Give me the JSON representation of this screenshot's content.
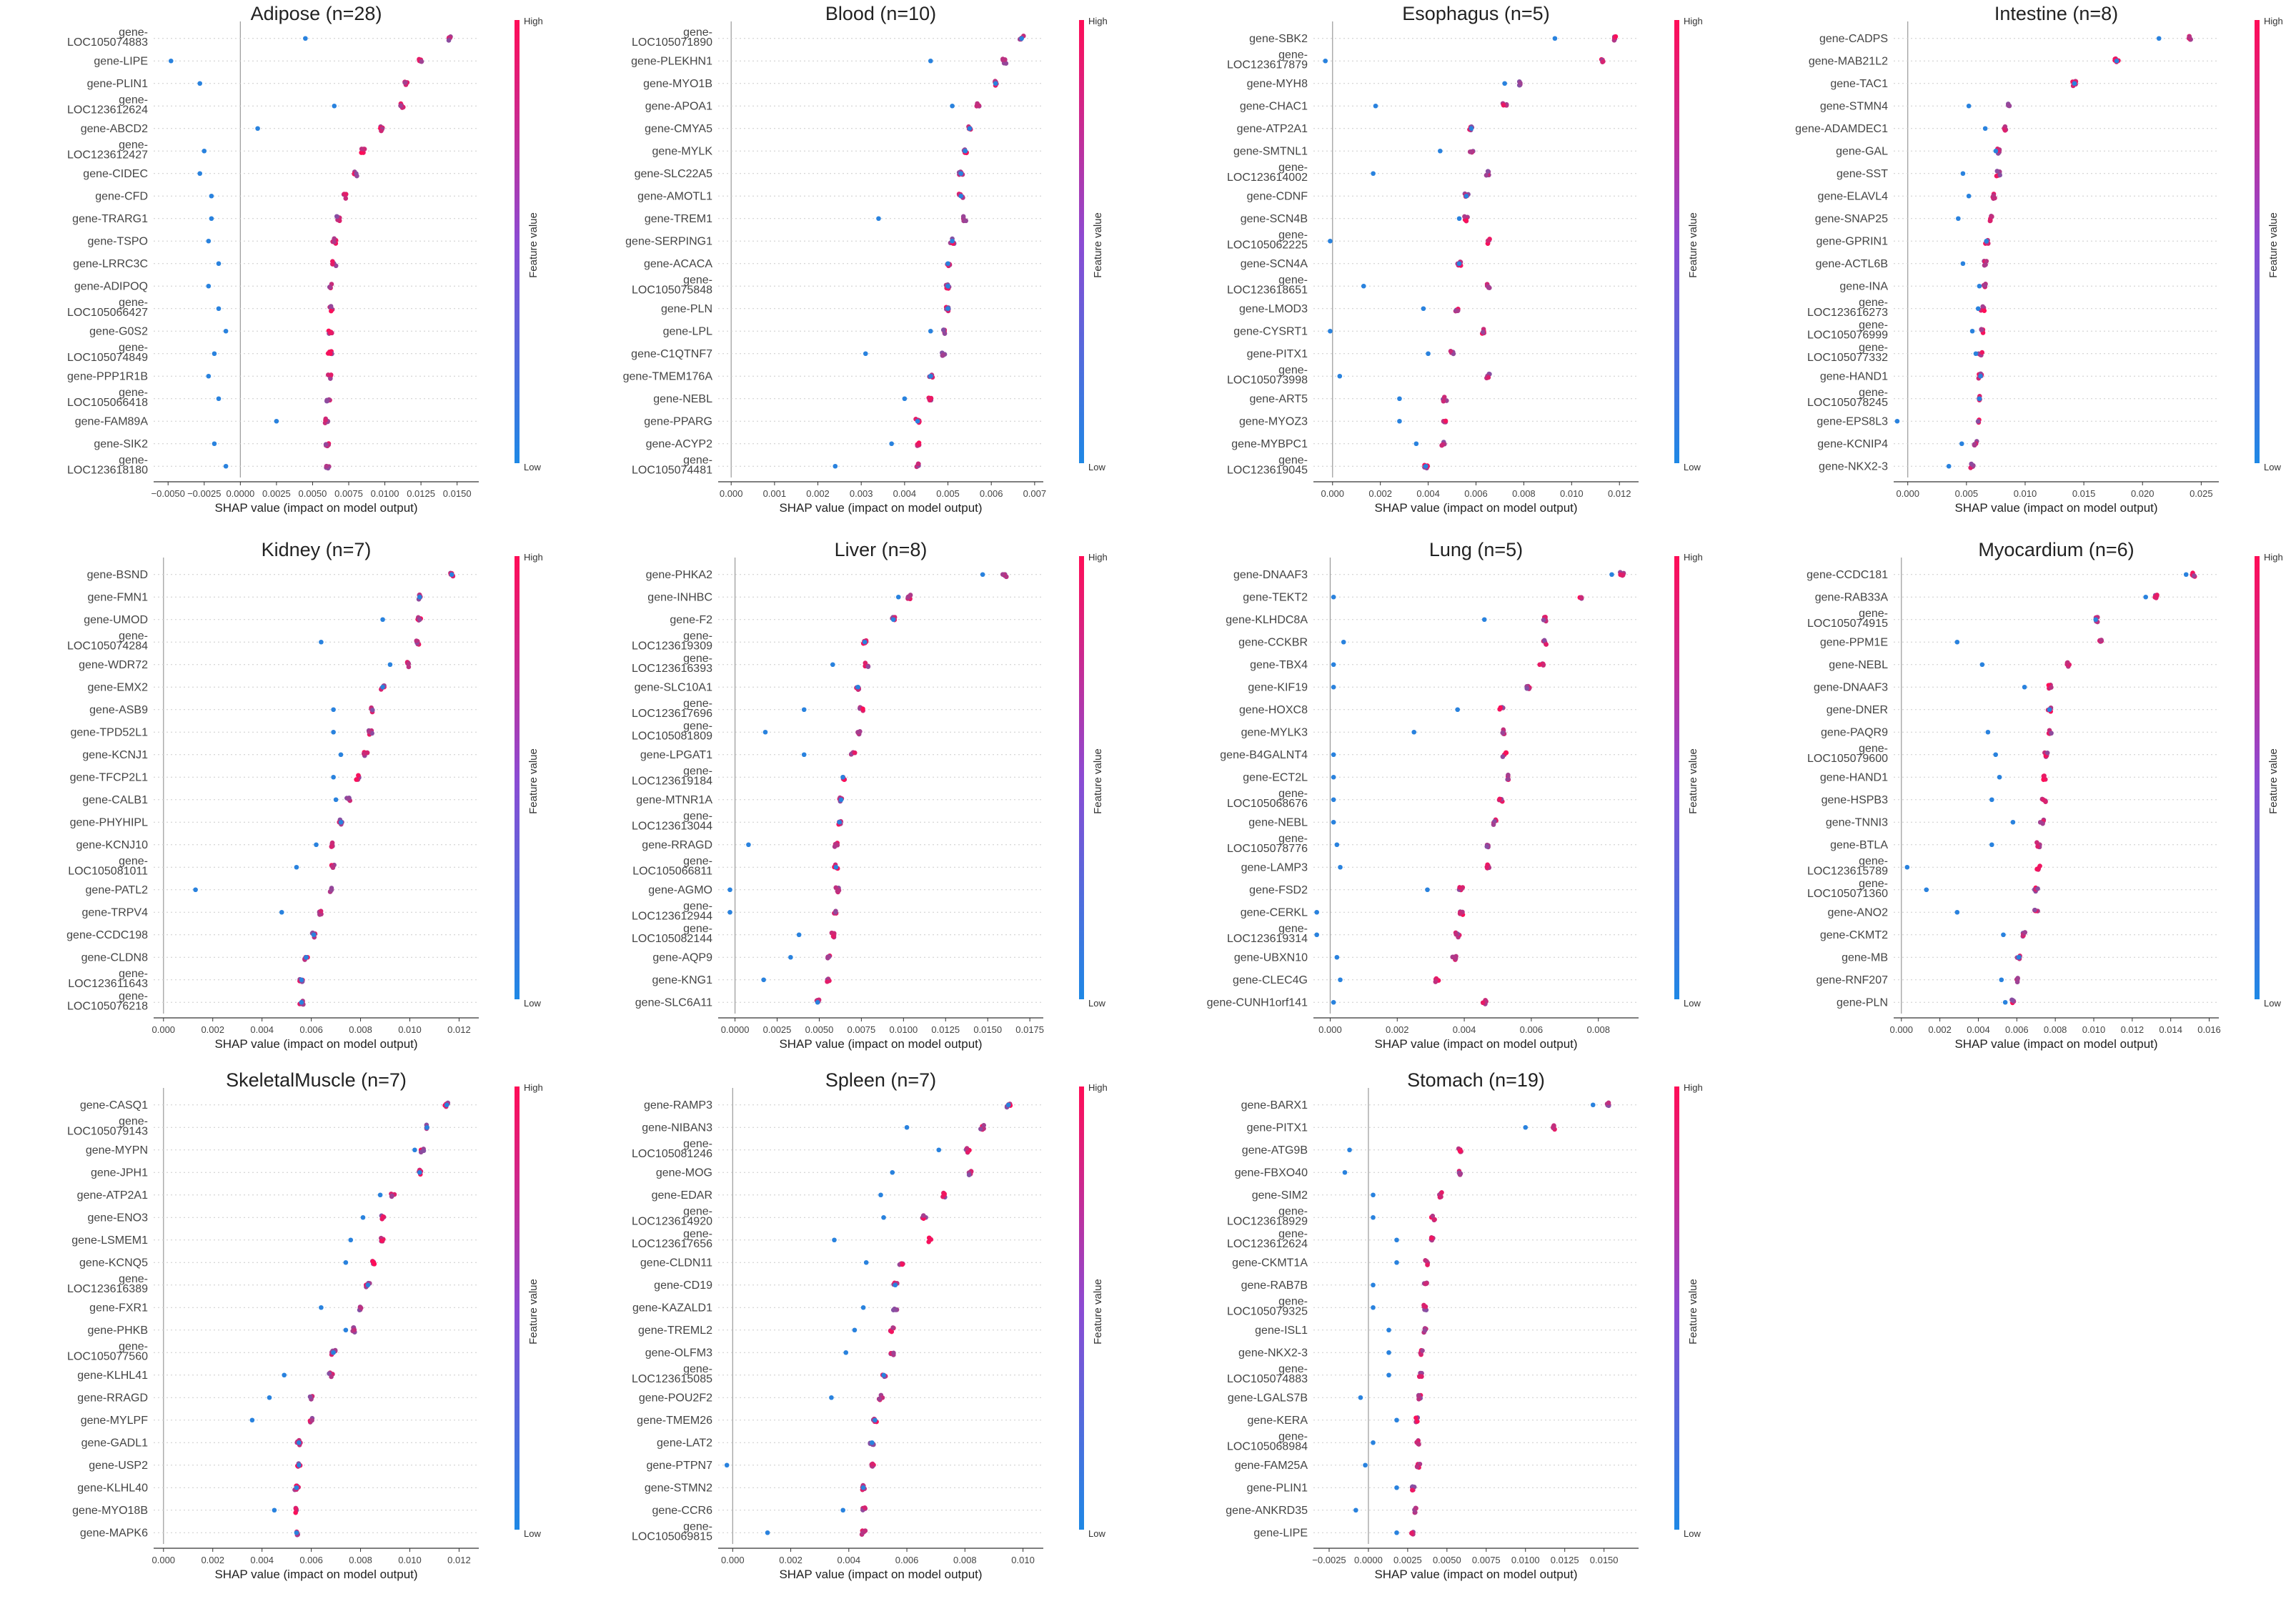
{
  "chart_data": [
    {
      "type": "scatter",
      "title": "Adipose (n=28)",
      "xlabel": "SHAP value (impact on model output)",
      "xlim": [
        -0.006,
        0.0165
      ],
      "xticks": [
        -0.005,
        -0.0025,
        0,
        0.0025,
        0.005,
        0.0075,
        0.01,
        0.0125,
        0.015
      ],
      "xtick_labels": [
        "−0.0050",
        "−0.0025",
        "0.0000",
        "0.0025",
        "0.0050",
        "0.0075",
        "0.0100",
        "0.0125",
        "0.0150"
      ],
      "features": [
        "gene-LOC105074883",
        "gene-LIPE",
        "gene-PLIN1",
        "gene-LOC123612624",
        "gene-ABCD2",
        "gene-LOC123612427",
        "gene-CIDEC",
        "gene-CFD",
        "gene-TRARG1",
        "gene-TSPO",
        "gene-LRRC3C",
        "gene-ADIPOQ",
        "gene-LOC105066427",
        "gene-G0S2",
        "gene-LOC105074849",
        "gene-PPP1R1B",
        "gene-LOC105066418",
        "gene-FAM89A",
        "gene-SIK2",
        "gene-LOC123618180"
      ],
      "centers": [
        0.0145,
        0.0125,
        0.0115,
        0.0112,
        0.0098,
        0.0085,
        0.008,
        0.0072,
        0.0068,
        0.0065,
        0.0065,
        0.0063,
        0.0063,
        0.0062,
        0.0062,
        0.0062,
        0.0061,
        0.006,
        0.006,
        0.006
      ],
      "lows": [
        0.0045,
        -0.0048,
        -0.0028,
        0.0065,
        0.0012,
        -0.0025,
        -0.0028,
        -0.002,
        -0.002,
        -0.0022,
        -0.0015,
        -0.0022,
        -0.0015,
        -0.001,
        -0.0018,
        -0.0022,
        -0.0015,
        0.0025,
        -0.0018,
        -0.001
      ]
    },
    {
      "type": "scatter",
      "title": "Blood (n=10)",
      "xlabel": "SHAP value (impact on model output)",
      "xlim": [
        -0.0003,
        0.0072
      ],
      "xticks": [
        0,
        0.001,
        0.002,
        0.003,
        0.004,
        0.005,
        0.006,
        0.007
      ],
      "xtick_labels": [
        "0.000",
        "0.001",
        "0.002",
        "0.003",
        "0.004",
        "0.005",
        "0.006",
        "0.007"
      ],
      "features": [
        "gene-LOC105071890",
        "gene-PLEKHN1",
        "gene-MYO1B",
        "gene-APOA1",
        "gene-CMYA5",
        "gene-MYLK",
        "gene-SLC22A5",
        "gene-AMOTL1",
        "gene-TREM1",
        "gene-SERPING1",
        "gene-ACACA",
        "gene-LOC105075848",
        "gene-PLN",
        "gene-LPL",
        "gene-C1QTNF7",
        "gene-TMEM176A",
        "gene-NEBL",
        "gene-PPARG",
        "gene-ACYP2",
        "gene-LOC105074481"
      ],
      "centers": [
        0.0067,
        0.0063,
        0.0061,
        0.0057,
        0.0055,
        0.0054,
        0.0053,
        0.0053,
        0.0054,
        0.0051,
        0.005,
        0.005,
        0.005,
        0.0049,
        0.0049,
        0.0046,
        0.0046,
        0.0043,
        0.0043,
        0.0043
      ],
      "lows": [
        0.0067,
        0.0046,
        0.0061,
        0.0051,
        0.0055,
        0.0054,
        0.0053,
        0.0053,
        0.0034,
        0.0051,
        0.005,
        0.005,
        0.005,
        0.0046,
        0.0031,
        0.0046,
        0.004,
        0.0043,
        0.0037,
        0.0024
      ]
    },
    {
      "type": "scatter",
      "title": "Esophagus (n=5)",
      "xlabel": "SHAP value (impact on model output)",
      "xlim": [
        -0.0008,
        0.0128
      ],
      "xticks": [
        0,
        0.002,
        0.004,
        0.006,
        0.008,
        0.01,
        0.012
      ],
      "xtick_labels": [
        "0.000",
        "0.002",
        "0.004",
        "0.006",
        "0.008",
        "0.010",
        "0.012"
      ],
      "features": [
        "gene-SBK2",
        "gene-LOC123617879",
        "gene-MYH8",
        "gene-CHAC1",
        "gene-ATP2A1",
        "gene-SMTNL1",
        "gene-LOC123614002",
        "gene-CDNF",
        "gene-SCN4B",
        "gene-LOC105062225",
        "gene-SCN4A",
        "gene-LOC123618651",
        "gene-LMOD3",
        "gene-CYSRT1",
        "gene-PITX1",
        "gene-LOC105073998",
        "gene-ART5",
        "gene-MYOZ3",
        "gene-MYBPC1",
        "gene-LOC123619045"
      ],
      "centers": [
        0.0118,
        0.0113,
        0.0078,
        0.0072,
        0.0058,
        0.0058,
        0.0065,
        0.0056,
        0.0056,
        0.0065,
        0.0053,
        0.0065,
        0.0052,
        0.0063,
        0.005,
        0.0065,
        0.0047,
        0.0047,
        0.0046,
        0.0039
      ],
      "lows": [
        0.0093,
        -0.0003,
        0.0072,
        0.0018,
        0.0058,
        0.0045,
        0.0017,
        0.0056,
        0.0053,
        -0.0001,
        0.0053,
        0.0013,
        0.0038,
        -0.0001,
        0.004,
        0.0003,
        0.0028,
        0.0028,
        0.0035,
        0.0039
      ]
    },
    {
      "type": "scatter",
      "title": "Intestine (n=8)",
      "xlabel": "SHAP value (impact on model output)",
      "xlim": [
        -0.0012,
        0.0265
      ],
      "xticks": [
        0,
        0.005,
        0.01,
        0.015,
        0.02,
        0.025
      ],
      "xtick_labels": [
        "0.000",
        "0.005",
        "0.010",
        "0.015",
        "0.020",
        "0.025"
      ],
      "features": [
        "gene-CADPS",
        "gene-MAB21L2",
        "gene-TAC1",
        "gene-STMN4",
        "gene-ADAMDEC1",
        "gene-GAL",
        "gene-SST",
        "gene-ELAVL4",
        "gene-SNAP25",
        "gene-GPRIN1",
        "gene-ACTL6B",
        "gene-INA",
        "gene-LOC123616273",
        "gene-LOC105076999",
        "gene-LOC105077332",
        "gene-HAND1",
        "gene-LOC105078245",
        "gene-EPS8L3",
        "gene-KCNIP4",
        "gene-NKX2-3"
      ],
      "centers": [
        0.024,
        0.0178,
        0.0142,
        0.0085,
        0.0082,
        0.0078,
        0.0077,
        0.0074,
        0.007,
        0.0067,
        0.0066,
        0.0065,
        0.0064,
        0.0063,
        0.0062,
        0.0062,
        0.0061,
        0.006,
        0.0058,
        0.0055
      ],
      "lows": [
        0.0214,
        0.0178,
        0.0142,
        0.0052,
        0.0066,
        0.0075,
        0.0047,
        0.0052,
        0.0043,
        0.0067,
        0.0047,
        0.0061,
        0.006,
        0.0055,
        0.0058,
        0.0062,
        0.0061,
        -0.0009,
        0.0046,
        0.0035
      ]
    },
    {
      "type": "scatter",
      "title": "Kidney (n=7)",
      "xlabel": "SHAP value (impact on model output)",
      "xlim": [
        -0.0004,
        0.0128
      ],
      "xticks": [
        0,
        0.002,
        0.004,
        0.006,
        0.008,
        0.01,
        0.012
      ],
      "xtick_labels": [
        "0.000",
        "0.002",
        "0.004",
        "0.006",
        "0.008",
        "0.010",
        "0.012"
      ],
      "features": [
        "gene-BSND",
        "gene-FMN1",
        "gene-UMOD",
        "gene-LOC105074284",
        "gene-WDR72",
        "gene-EMX2",
        "gene-ASB9",
        "gene-TPD52L1",
        "gene-KCNJ1",
        "gene-TFCP2L1",
        "gene-CALB1",
        "gene-PHYHIPL",
        "gene-KCNJ10",
        "gene-LOC105081011",
        "gene-PATL2",
        "gene-TRPV4",
        "gene-CCDC198",
        "gene-CLDN8",
        "gene-LOC123611643",
        "gene-LOC105076218"
      ],
      "centers": [
        0.0117,
        0.0104,
        0.0104,
        0.0103,
        0.0099,
        0.0089,
        0.0085,
        0.0084,
        0.0082,
        0.0079,
        0.0075,
        0.0072,
        0.0069,
        0.0069,
        0.0068,
        0.0064,
        0.0061,
        0.0058,
        0.0056,
        0.0056
      ],
      "lows": [
        0.0117,
        0.0104,
        0.0089,
        0.0064,
        0.0092,
        0.0089,
        0.0069,
        0.0069,
        0.0072,
        0.0069,
        0.007,
        0.0072,
        0.0062,
        0.0054,
        0.0013,
        0.0048,
        0.0061,
        0.0058,
        0.0056,
        0.0056
      ]
    },
    {
      "type": "scatter",
      "title": "Liver (n=8)",
      "xlabel": "SHAP value (impact on model output)",
      "xlim": [
        -0.001,
        0.0183
      ],
      "xticks": [
        0,
        0.0025,
        0.005,
        0.0075,
        0.01,
        0.0125,
        0.015,
        0.0175
      ],
      "xtick_labels": [
        "0.0000",
        "0.0025",
        "0.0050",
        "0.0075",
        "0.0100",
        "0.0125",
        "0.0150",
        "0.0175"
      ],
      "features": [
        "gene-PHKA2",
        "gene-INHBC",
        "gene-F2",
        "gene-LOC123619309",
        "gene-LOC123616393",
        "gene-SLC10A1",
        "gene-LOC123617696",
        "gene-LOC105081809",
        "gene-LPGAT1",
        "gene-LOC123619184",
        "gene-MTNR1A",
        "gene-LOC123613044",
        "gene-RRAGD",
        "gene-LOC105066811",
        "gene-AGMO",
        "gene-LOC123612944",
        "gene-LOC105082144",
        "gene-AQP9",
        "gene-KNG1",
        "gene-SLC6A11"
      ],
      "centers": [
        0.016,
        0.0103,
        0.0094,
        0.0077,
        0.0078,
        0.0073,
        0.0075,
        0.0074,
        0.007,
        0.0064,
        0.0063,
        0.0062,
        0.006,
        0.006,
        0.0061,
        0.006,
        0.0058,
        0.0056,
        0.0055,
        0.0049
      ],
      "lows": [
        0.0147,
        0.0097,
        0.0094,
        0.0077,
        0.0058,
        0.0073,
        0.0041,
        0.0018,
        0.0041,
        0.0064,
        0.0063,
        0.0062,
        0.0008,
        0.006,
        -0.0003,
        -0.0003,
        0.0038,
        0.0033,
        0.0017,
        0.0049
      ]
    },
    {
      "type": "scatter",
      "title": "Lung (n=5)",
      "xlabel": "SHAP value (impact on model output)",
      "xlim": [
        -0.0005,
        0.0092
      ],
      "xticks": [
        0,
        0.002,
        0.004,
        0.006,
        0.008
      ],
      "xtick_labels": [
        "0.000",
        "0.002",
        "0.004",
        "0.006",
        "0.008"
      ],
      "features": [
        "gene-DNAAF3",
        "gene-TEKT2",
        "gene-KLHDC8A",
        "gene-CCKBR",
        "gene-TBX4",
        "gene-KIF19",
        "gene-HOXC8",
        "gene-MYLK3",
        "gene-B4GALNT4",
        "gene-ECT2L",
        "gene-LOC105068676",
        "gene-NEBL",
        "gene-LOC105078776",
        "gene-LAMP3",
        "gene-FSD2",
        "gene-CERKL",
        "gene-LOC123619314",
        "gene-UBXN10",
        "gene-CLEC4G",
        "gene-CUNH1orf141"
      ],
      "centers": [
        0.0087,
        0.0075,
        0.0064,
        0.0064,
        0.0063,
        0.0059,
        0.0051,
        0.0052,
        0.0052,
        0.0053,
        0.0051,
        0.0049,
        0.0047,
        0.0047,
        0.0039,
        0.0039,
        0.0038,
        0.0037,
        0.0032,
        0.0046
      ],
      "lows": [
        0.0084,
        0.0001,
        0.0046,
        0.0004,
        0.0001,
        0.0001,
        0.0038,
        0.0025,
        0.0001,
        0.0001,
        0.0001,
        0.0001,
        0.0002,
        0.0003,
        0.0029,
        -0.0004,
        -0.0004,
        0.0002,
        0.0003,
        0.0001
      ]
    },
    {
      "type": "scatter",
      "title": "Myocardium (n=6)",
      "xlabel": "SHAP value (impact on model output)",
      "xlim": [
        -0.0004,
        0.0165
      ],
      "xticks": [
        0,
        0.002,
        0.004,
        0.006,
        0.008,
        0.01,
        0.012,
        0.014,
        0.016
      ],
      "xtick_labels": [
        "0.000",
        "0.002",
        "0.004",
        "0.006",
        "0.008",
        "0.010",
        "0.012",
        "0.014",
        "0.016"
      ],
      "features": [
        "gene-CCDC181",
        "gene-RAB33A",
        "gene-LOC105074915",
        "gene-PPM1E",
        "gene-NEBL",
        "gene-DNAAF3",
        "gene-DNER",
        "gene-PAQR9",
        "gene-LOC105079600",
        "gene-HAND1",
        "gene-HSPB3",
        "gene-TNNI3",
        "gene-BTLA",
        "gene-LOC123615789",
        "gene-LOC105071360",
        "gene-ANO2",
        "gene-CKMT2",
        "gene-MB",
        "gene-RNF207",
        "gene-PLN"
      ],
      "centers": [
        0.0152,
        0.0132,
        0.0101,
        0.0103,
        0.0087,
        0.0077,
        0.0077,
        0.0077,
        0.0075,
        0.0074,
        0.0074,
        0.0073,
        0.0071,
        0.0071,
        0.007,
        0.007,
        0.0064,
        0.0061,
        0.006,
        0.0058
      ],
      "lows": [
        0.0148,
        0.0127,
        0.0101,
        0.0029,
        0.0042,
        0.0064,
        0.0077,
        0.0045,
        0.0049,
        0.0051,
        0.0047,
        0.0058,
        0.0047,
        0.0003,
        0.0013,
        0.0029,
        0.0053,
        0.0061,
        0.0052,
        0.0054
      ]
    },
    {
      "type": "scatter",
      "title": "SkeletalMuscle (n=7)",
      "xlabel": "SHAP value (impact on model output)",
      "xlim": [
        -0.0004,
        0.0128
      ],
      "xticks": [
        0,
        0.002,
        0.004,
        0.006,
        0.008,
        0.01,
        0.012
      ],
      "xtick_labels": [
        "0.000",
        "0.002",
        "0.004",
        "0.006",
        "0.008",
        "0.010",
        "0.012"
      ],
      "features": [
        "gene-CASQ1",
        "gene-LOC105079143",
        "gene-MYPN",
        "gene-JPH1",
        "gene-ATP2A1",
        "gene-ENO3",
        "gene-LSMEM1",
        "gene-KCNQ5",
        "gene-LOC123616389",
        "gene-FXR1",
        "gene-PHKB",
        "gene-LOC105077560",
        "gene-KLHL41",
        "gene-RRAGD",
        "gene-MYLPF",
        "gene-GADL1",
        "gene-USP2",
        "gene-KLHL40",
        "gene-MYO18B",
        "gene-MAPK6"
      ],
      "centers": [
        0.0115,
        0.0107,
        0.0105,
        0.0104,
        0.0093,
        0.0089,
        0.0089,
        0.0085,
        0.0083,
        0.008,
        0.0077,
        0.0069,
        0.0068,
        0.006,
        0.006,
        0.0055,
        0.0055,
        0.0054,
        0.0054,
        0.0054
      ],
      "lows": [
        0.0115,
        0.0107,
        0.0102,
        0.0104,
        0.0088,
        0.0081,
        0.0076,
        0.0074,
        0.0083,
        0.0064,
        0.0074,
        0.0069,
        0.0049,
        0.0043,
        0.0036,
        0.0055,
        0.0055,
        0.0054,
        0.0045,
        0.0054
      ]
    },
    {
      "type": "scatter",
      "title": "Spleen (n=7)",
      "xlabel": "SHAP value (impact on model output)",
      "xlim": [
        -0.0005,
        0.0107
      ],
      "xticks": [
        0,
        0.002,
        0.004,
        0.006,
        0.008,
        0.01
      ],
      "xtick_labels": [
        "0.000",
        "0.002",
        "0.004",
        "0.006",
        "0.008",
        "0.010"
      ],
      "features": [
        "gene-RAMP3",
        "gene-NIBAN3",
        "gene-LOC105081246",
        "gene-MOG",
        "gene-EDAR",
        "gene-LOC123614920",
        "gene-LOC123617656",
        "gene-CLDN11",
        "gene-CD19",
        "gene-KAZALD1",
        "gene-TREML2",
        "gene-OLFM3",
        "gene-LOC123615085",
        "gene-POU2F2",
        "gene-TMEM26",
        "gene-LAT2",
        "gene-PTPN7",
        "gene-STMN2",
        "gene-CCR6",
        "gene-LOC105069815"
      ],
      "centers": [
        0.0095,
        0.0086,
        0.0081,
        0.0082,
        0.0073,
        0.0066,
        0.0068,
        0.0058,
        0.0056,
        0.0056,
        0.0055,
        0.0055,
        0.0052,
        0.0051,
        0.0049,
        0.0048,
        0.0048,
        0.0045,
        0.0045,
        0.0045
      ],
      "lows": [
        0.0095,
        0.006,
        0.0071,
        0.0055,
        0.0051,
        0.0052,
        0.0035,
        0.0046,
        0.0056,
        0.0045,
        0.0042,
        0.0039,
        0.0052,
        0.0034,
        0.0049,
        0.0048,
        -0.0002,
        0.0045,
        0.0038,
        0.0012
      ]
    },
    {
      "type": "scatter",
      "title": "Stomach (n=19)",
      "xlabel": "SHAP value (impact on model output)",
      "xlim": [
        -0.0035,
        0.0172
      ],
      "xticks": [
        -0.0025,
        0,
        0.0025,
        0.005,
        0.0075,
        0.01,
        0.0125,
        0.015
      ],
      "xtick_labels": [
        "−0.0025",
        "0.0000",
        "0.0025",
        "0.0050",
        "0.0075",
        "0.0100",
        "0.0125",
        "0.0150"
      ],
      "features": [
        "gene-BARX1",
        "gene-PITX1",
        "gene-ATG9B",
        "gene-FBXO40",
        "gene-SIM2",
        "gene-LOC123618929",
        "gene-LOC123612624",
        "gene-CKMT1A",
        "gene-RAB7B",
        "gene-LOC105079325",
        "gene-ISL1",
        "gene-NKX2-3",
        "gene-LOC105074883",
        "gene-LGALS7B",
        "gene-KERA",
        "gene-LOC105068984",
        "gene-FAM25A",
        "gene-PLIN1",
        "gene-ANKRD35",
        "gene-LIPE"
      ],
      "centers": [
        0.0152,
        0.0118,
        0.0058,
        0.0058,
        0.0046,
        0.0041,
        0.0041,
        0.0037,
        0.0036,
        0.0036,
        0.0036,
        0.0034,
        0.0033,
        0.0033,
        0.0031,
        0.0031,
        0.0032,
        0.0029,
        0.003,
        0.0028
      ],
      "lows": [
        0.0143,
        0.01,
        -0.0012,
        -0.0015,
        0.0003,
        0.0003,
        0.0018,
        0.0018,
        0.0003,
        0.0003,
        0.0013,
        0.0013,
        0.0013,
        -0.0005,
        0.0018,
        0.0003,
        -0.0002,
        0.0018,
        -0.0008,
        0.0018
      ]
    }
  ],
  "colorbar": {
    "high": "High",
    "low": "Low",
    "title": "Feature value",
    "color_low": "#1e88e5",
    "color_high": "#ff0d57"
  }
}
